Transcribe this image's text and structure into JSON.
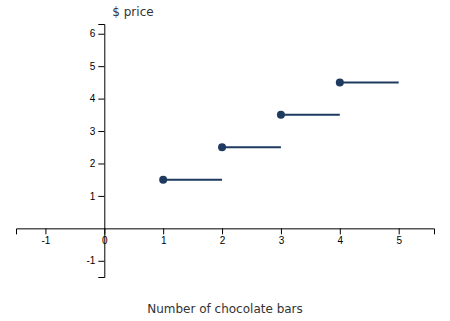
{
  "chart_data": {
    "type": "step",
    "xlabel": "Number of chocolate bars",
    "ylabel": "$ price",
    "series": [
      {
        "x": [
          1,
          2,
          3,
          4
        ],
        "x_end": [
          2,
          3,
          4,
          5
        ],
        "values": [
          1.5,
          2.5,
          3.5,
          4.5
        ],
        "color": "#1e3a5f",
        "marker": "circle"
      }
    ],
    "xlim": [
      -1.5,
      5.6
    ],
    "ylim": [
      -1.5,
      6.3
    ],
    "xticks": [
      -1,
      0,
      1,
      2,
      3,
      4,
      5
    ],
    "yticks": [
      -1,
      1,
      2,
      3,
      4,
      5,
      6
    ],
    "grid": false
  }
}
